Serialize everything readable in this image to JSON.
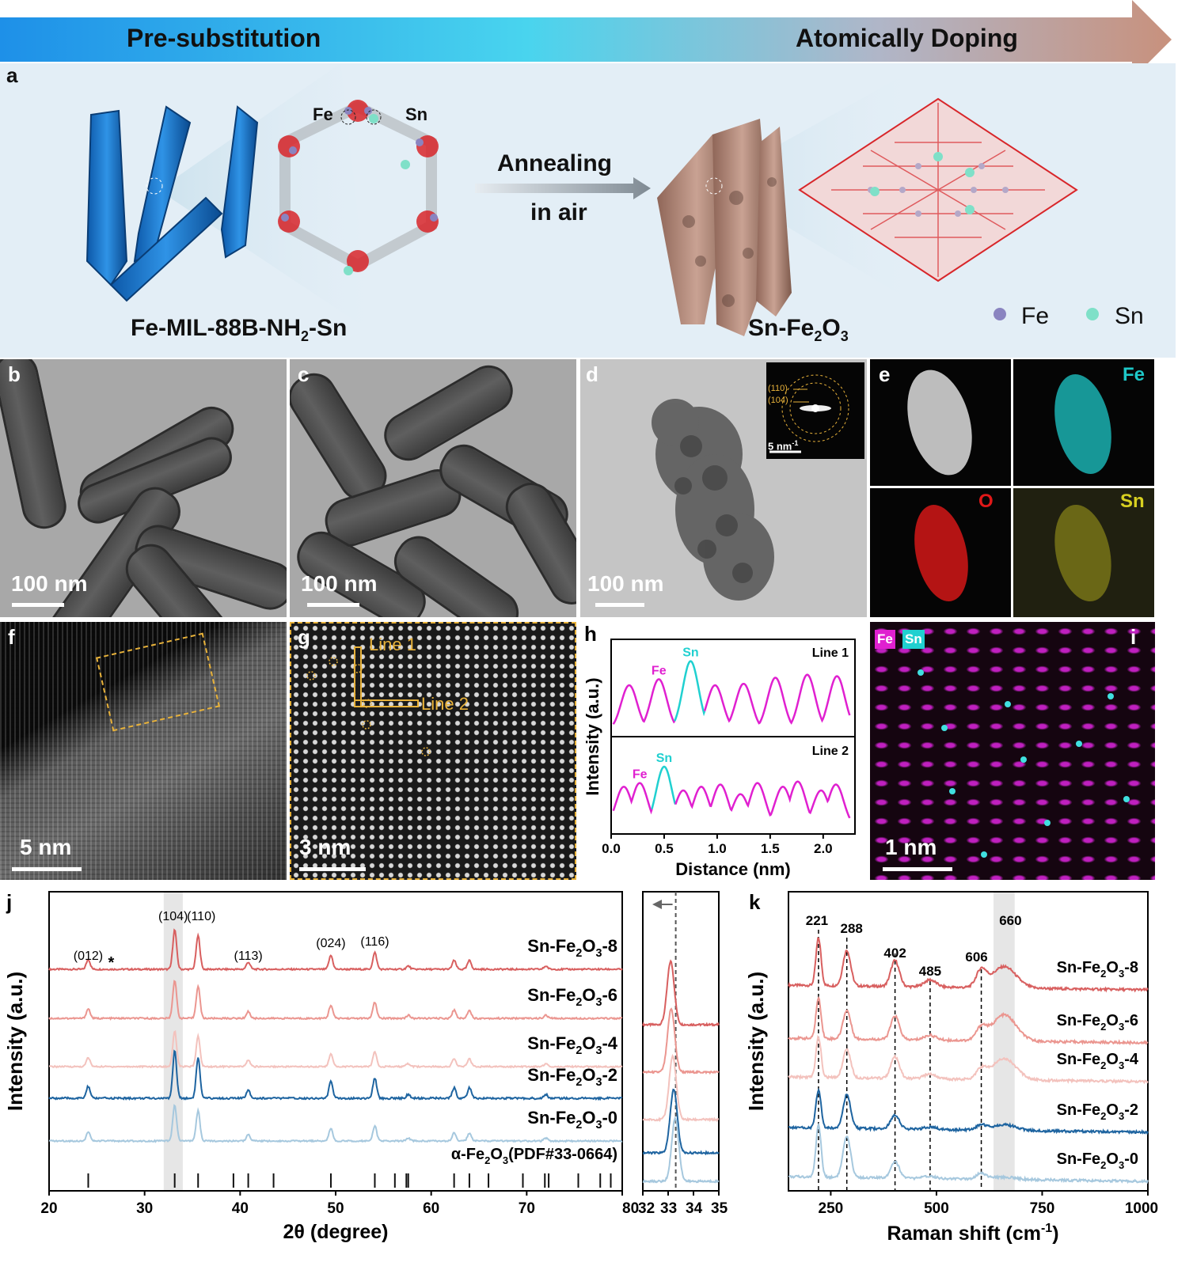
{
  "banner": {
    "left_label": "Pre-substitution",
    "right_label": "Atomically Doping",
    "colors": {
      "start": "#1e90e8",
      "mid": "#49d4ee",
      "end": "#c8917d"
    }
  },
  "panel_a": {
    "letter": "a",
    "fe_tag": "Fe",
    "sn_tag": "Sn",
    "arrow_line1": "Annealing",
    "arrow_line2": "in air",
    "left_caption": "Fe-MIL-88B-NH",
    "left_caption_sub": "2",
    "left_caption_tail": "-Sn",
    "right_caption": "Sn-Fe",
    "right_caption_sub1": "2",
    "right_caption_mid": "O",
    "right_caption_sub2": "3",
    "legend_fe": "Fe",
    "legend_sn": "Sn",
    "colors": {
      "fe_atom": "#8a84c0",
      "sn_atom": "#7fe0c8",
      "oxygen": "#d8262a",
      "crystal": "#1e7fd0",
      "oxide_rod": "#b88a7a"
    }
  },
  "panel_b": {
    "letter": "b",
    "scale": "100 nm"
  },
  "panel_c": {
    "letter": "c",
    "scale": "100 nm"
  },
  "panel_d": {
    "letter": "d",
    "scale": "100 nm",
    "inset_ring1": "(110)",
    "inset_ring2": "(104)",
    "inset_scale": "5 nm",
    "inset_scale_sup": "-1"
  },
  "panel_e": {
    "letter": "e",
    "map_fe": "Fe",
    "map_o": "O",
    "map_sn": "Sn",
    "colors": {
      "fe": "#1ec8c8",
      "o": "#e01818",
      "sn": "#d8d020"
    }
  },
  "panel_f": {
    "letter": "f",
    "scale": "5 nm"
  },
  "panel_g": {
    "letter": "g",
    "scale": "3 nm",
    "line1": "Line 1",
    "line2": "Line 2"
  },
  "panel_h": {
    "letter": "h",
    "chart_data": {
      "type": "line",
      "xlabel": "Distance (nm)",
      "ylabel": "Intensity (a.u.)",
      "xlim": [
        0.0,
        2.3
      ],
      "xticks": [
        "0.0",
        "0.5",
        "1.0",
        "1.5",
        "2.0"
      ],
      "panels": [
        {
          "name": "Line 1",
          "fe_label": "Fe",
          "sn_label": "Sn",
          "fe_peaks": [
            0.17,
            0.45,
            0.98,
            1.25,
            1.55,
            1.85,
            2.13
          ],
          "sn_peaks": [
            0.75
          ],
          "peak_heights": [
            0.6,
            0.68,
            0.92,
            0.6,
            0.62,
            0.7,
            0.74,
            0.72
          ]
        },
        {
          "name": "Line 2",
          "fe_label": "Fe",
          "sn_label": "Sn",
          "fe_peaks": [
            0.12,
            0.27,
            0.68,
            0.85,
            1.03,
            1.22,
            1.38,
            1.62,
            1.76,
            1.98,
            2.12
          ],
          "sn_peaks": [
            0.5
          ],
          "peak_heights": [
            0.55,
            0.6,
            0.82,
            0.5,
            0.55,
            0.58,
            0.45,
            0.6,
            0.55,
            0.62,
            0.5,
            0.58
          ]
        }
      ],
      "colors": {
        "fe": "#e020d0",
        "sn": "#20d0d0"
      }
    }
  },
  "panel_i": {
    "letter": "i",
    "tag_fe": "Fe",
    "tag_sn": "Sn",
    "scale": "1 nm"
  },
  "panel_j": {
    "letter": "j",
    "chart_data": {
      "type": "line",
      "xlabel": "2θ (degree)",
      "ylabel": "Intensity (a.u.)",
      "xlim": [
        20,
        80
      ],
      "xticks": [
        20,
        30,
        40,
        50,
        60,
        70,
        80
      ],
      "peaks": [
        {
          "pos": 24.1,
          "label": "(012)",
          "h": 0.25
        },
        {
          "pos": 33.15,
          "label": "(104)",
          "h": 1.0
        },
        {
          "pos": 35.6,
          "label": "(110)",
          "h": 0.85
        },
        {
          "pos": 40.85,
          "label": "(113)",
          "h": 0.18
        },
        {
          "pos": 49.5,
          "label": "(024)",
          "h": 0.35
        },
        {
          "pos": 54.1,
          "label": "(116)",
          "h": 0.42
        },
        {
          "pos": 57.6,
          "label": "",
          "h": 0.08
        },
        {
          "pos": 62.4,
          "label": "",
          "h": 0.22
        },
        {
          "pos": 64.0,
          "label": "",
          "h": 0.22
        },
        {
          "pos": 72.0,
          "label": "",
          "h": 0.08
        }
      ],
      "star_label": "*",
      "star_pos": 26.5,
      "series": [
        {
          "name": "Sn-Fe2O3-8",
          "label": "Sn-Fe",
          "sub1": "2",
          "mid": "O",
          "sub2": "3",
          "tail": "-8",
          "color": "#d85f5f"
        },
        {
          "name": "Sn-Fe2O3-6",
          "label": "Sn-Fe",
          "sub1": "2",
          "mid": "O",
          "sub2": "3",
          "tail": "-6",
          "color": "#eb9690"
        },
        {
          "name": "Sn-Fe2O3-4",
          "label": "Sn-Fe",
          "sub1": "2",
          "mid": "O",
          "sub2": "3",
          "tail": "-4",
          "color": "#f3c2bd"
        },
        {
          "name": "Sn-Fe2O3-2",
          "label": "Sn-Fe",
          "sub1": "2",
          "mid": "O",
          "sub2": "3",
          "tail": "-2",
          "color": "#1e64a0"
        },
        {
          "name": "Sn-Fe2O3-0",
          "label": "Sn-Fe",
          "sub1": "2",
          "mid": "O",
          "sub2": "3",
          "tail": "-0",
          "color": "#a6c8de"
        }
      ],
      "reference": {
        "label": "α-Fe",
        "sub1": "2",
        "mid": "O",
        "sub2": "3",
        "tail": "(PDF#33-0664)",
        "lines": [
          24.1,
          33.15,
          35.6,
          39.3,
          40.85,
          43.5,
          49.5,
          54.1,
          56.2,
          57.4,
          57.6,
          62.4,
          64.0,
          66.0,
          69.6,
          71.9,
          72.3,
          75.4,
          77.7,
          78.8
        ]
      },
      "highlight_range": [
        32.0,
        34.0
      ],
      "zoom": {
        "xlim": [
          32,
          35
        ],
        "xticks": [
          "32",
          "33",
          "34",
          "35"
        ],
        "xtick_values": [
          32,
          33,
          34,
          35
        ],
        "dashed_line": 33.3,
        "peak_positions": [
          33.1,
          33.12,
          33.18,
          33.22,
          33.28
        ]
      }
    }
  },
  "panel_k": {
    "letter": "k",
    "chart_data": {
      "type": "line",
      "xlabel": "Raman shift (cm",
      "xlabel_sup": "-1",
      "xlabel_tail": ")",
      "ylabel": "Intensity (a.u.)",
      "xlim": [
        150,
        1000
      ],
      "xticks": [
        250,
        500,
        750,
        1000
      ],
      "peaks": [
        {
          "pos": 221,
          "label": "221"
        },
        {
          "pos": 288,
          "label": "288"
        },
        {
          "pos": 402,
          "label": "402"
        },
        {
          "pos": 485,
          "label": "485"
        },
        {
          "pos": 606,
          "label": "606"
        },
        {
          "pos": 660,
          "label": "660"
        }
      ],
      "dashed": [
        221,
        288,
        402,
        485,
        606
      ],
      "highlight_range": [
        635,
        685
      ],
      "series": [
        {
          "name": "Sn-Fe2O3-8",
          "label": "Sn-Fe",
          "sub1": "2",
          "mid": "O",
          "sub2": "3",
          "tail": "-8",
          "color": "#d85f5f"
        },
        {
          "name": "Sn-Fe2O3-6",
          "label": "Sn-Fe",
          "sub1": "2",
          "mid": "O",
          "sub2": "3",
          "tail": "-6",
          "color": "#eb9690"
        },
        {
          "name": "Sn-Fe2O3-4",
          "label": "Sn-Fe",
          "sub1": "2",
          "mid": "O",
          "sub2": "3",
          "tail": "-4",
          "color": "#f3c2bd"
        },
        {
          "name": "Sn-Fe2O3-2",
          "label": "Sn-Fe",
          "sub1": "2",
          "mid": "O",
          "sub2": "3",
          "tail": "-2",
          "color": "#1e64a0"
        },
        {
          "name": "Sn-Fe2O3-0",
          "label": "Sn-Fe",
          "sub1": "2",
          "mid": "O",
          "sub2": "3",
          "tail": "-0",
          "color": "#a6c8de"
        }
      ]
    }
  }
}
